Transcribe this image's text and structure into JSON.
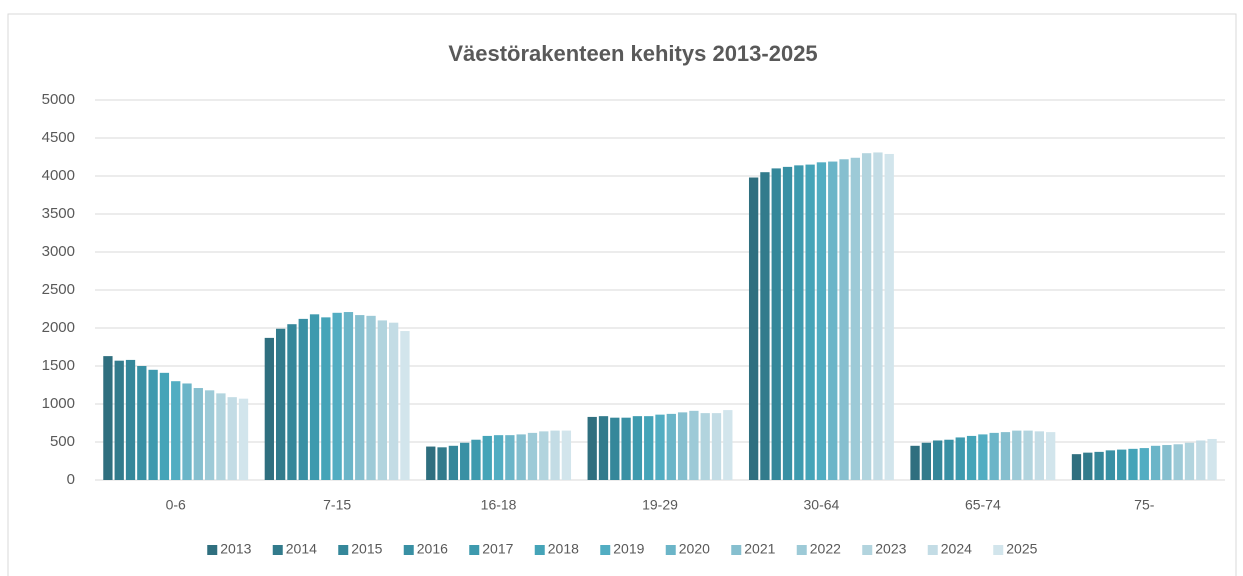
{
  "chart_data": {
    "type": "bar",
    "title": "Väestörakenteen kehitys 2013-2025",
    "categories": [
      "0-6",
      "7-15",
      "16-18",
      "19-29",
      "30-64",
      "65-74",
      "75-"
    ],
    "ylim": [
      0,
      5000
    ],
    "yticks": [
      0,
      500,
      1000,
      1500,
      2000,
      2500,
      3000,
      3500,
      4000,
      4500,
      5000
    ],
    "grid": true,
    "legend": "bottom",
    "series": [
      {
        "name": "2013",
        "color": "#2f6f7f",
        "values": [
          1630,
          1870,
          440,
          830,
          3980,
          450,
          340
        ]
      },
      {
        "name": "2014",
        "color": "#327b8c",
        "values": [
          1570,
          1990,
          430,
          840,
          4050,
          490,
          360
        ]
      },
      {
        "name": "2015",
        "color": "#35879a",
        "values": [
          1580,
          2050,
          450,
          820,
          4100,
          520,
          370
        ]
      },
      {
        "name": "2016",
        "color": "#3990a4",
        "values": [
          1500,
          2120,
          490,
          820,
          4120,
          530,
          390
        ]
      },
      {
        "name": "2017",
        "color": "#3e9aae",
        "values": [
          1450,
          2180,
          530,
          840,
          4140,
          560,
          400
        ]
      },
      {
        "name": "2018",
        "color": "#45a4b8",
        "values": [
          1410,
          2140,
          580,
          840,
          4150,
          580,
          410
        ]
      },
      {
        "name": "2019",
        "color": "#52adc2",
        "values": [
          1300,
          2200,
          590,
          860,
          4180,
          600,
          420
        ]
      },
      {
        "name": "2020",
        "color": "#6bb5c8",
        "values": [
          1270,
          2210,
          590,
          870,
          4190,
          620,
          450
        ]
      },
      {
        "name": "2021",
        "color": "#86bfcf",
        "values": [
          1210,
          2170,
          600,
          890,
          4220,
          630,
          460
        ]
      },
      {
        "name": "2022",
        "color": "#9dcad7",
        "values": [
          1180,
          2160,
          620,
          910,
          4240,
          650,
          470
        ]
      },
      {
        "name": "2023",
        "color": "#b2d4de",
        "values": [
          1140,
          2100,
          640,
          880,
          4300,
          650,
          490
        ]
      },
      {
        "name": "2024",
        "color": "#c3dce5",
        "values": [
          1090,
          2070,
          650,
          880,
          4310,
          640,
          520
        ]
      },
      {
        "name": "2025",
        "color": "#d2e5ec",
        "values": [
          1070,
          1960,
          650,
          920,
          4290,
          630,
          540
        ]
      }
    ]
  }
}
